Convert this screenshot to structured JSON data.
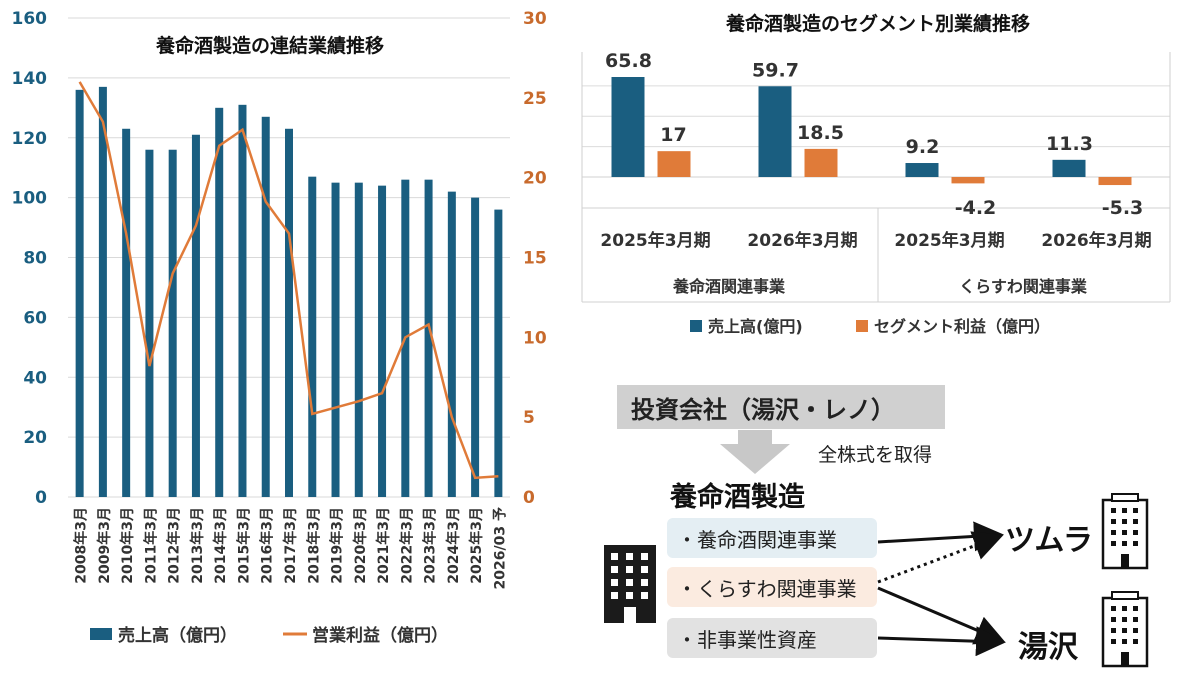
{
  "chart_data": [
    {
      "type": "bar+line",
      "title": "養命酒製造の連結業績推移",
      "categories": [
        "2008年3月",
        "2009年3月",
        "2010年3月",
        "2011年3月",
        "2012年3月",
        "2013年3月",
        "2014年3月",
        "2015年3月",
        "2016年3月",
        "2017年3月",
        "2018年3月",
        "2019年3月",
        "2020年3月",
        "2021年3月",
        "2022年3月",
        "2023年3月",
        "2024年3月",
        "2025年3月",
        "2026/03 予"
      ],
      "series": [
        {
          "name": "売上高（億円）",
          "type": "bar",
          "axis": "left",
          "color": "#1a5e80",
          "values": [
            136,
            137,
            123,
            116,
            116,
            121,
            130,
            131,
            127,
            123,
            107,
            105,
            105,
            104,
            106,
            106,
            102,
            100,
            96
          ]
        },
        {
          "name": "営業利益（億円）",
          "type": "line",
          "axis": "right",
          "color": "#e07b39",
          "values": [
            26,
            23.5,
            16.5,
            8.2,
            14,
            17,
            22,
            23,
            18.5,
            16.5,
            5.2,
            5.6,
            6,
            6.5,
            10,
            10.8,
            5,
            1.2,
            1.3
          ]
        }
      ],
      "y_left": {
        "min": 0,
        "max": 160,
        "ticks": [
          0,
          20,
          40,
          60,
          80,
          100,
          120,
          140,
          160
        ]
      },
      "y_right": {
        "min": 0,
        "max": 30,
        "ticks": [
          0,
          5,
          10,
          15,
          20,
          25,
          30
        ]
      },
      "legend_position": "bottom"
    },
    {
      "type": "bar",
      "title": "養命酒製造のセグメント別業績推移",
      "groups": [
        {
          "label": "養命酒関連事業",
          "categories": [
            "2025年3月期",
            "2026年3月期"
          ]
        },
        {
          "label": "くらすわ関連事業",
          "categories": [
            "2025年3月期",
            "2026年3月期"
          ]
        }
      ],
      "series": [
        {
          "name": "売上高(億円)",
          "color": "#1a5e80",
          "values": [
            65.8,
            59.7,
            9.2,
            11.3
          ],
          "labels": [
            "65.8",
            "59.7",
            "9.2",
            "11.3"
          ]
        },
        {
          "name": "セグメント利益（億円）",
          "color": "#e07b39",
          "values": [
            17,
            18.5,
            -4.2,
            -5.3
          ],
          "labels": [
            "17",
            "18.5",
            "-4.2",
            "-5.3"
          ]
        }
      ],
      "legend_position": "bottom",
      "grid": true
    }
  ],
  "diagram": {
    "investor": "投資会社（湯沢・レノ）",
    "arrow_label": "全株式を取得",
    "company": "養命酒製造",
    "segments": [
      "・養命酒関連事業",
      "・くらすわ関連事業",
      "・非事業性資産"
    ],
    "buyers": [
      "ツムラ",
      "湯沢"
    ]
  }
}
